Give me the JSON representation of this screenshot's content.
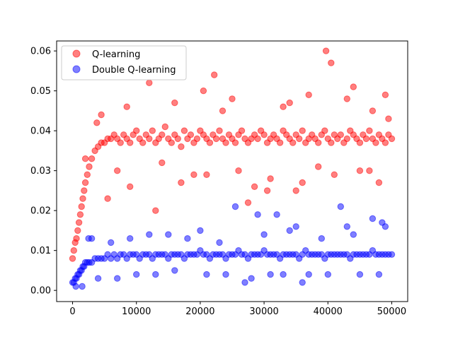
{
  "chart_data": {
    "type": "scatter",
    "title": "",
    "xlabel": "",
    "ylabel": "",
    "xlim": [
      -2500,
      52500
    ],
    "ylim": [
      -0.0028,
      0.0625
    ],
    "grid": false,
    "legend_position": "top-left",
    "x_ticks": [
      0,
      10000,
      20000,
      30000,
      40000,
      50000
    ],
    "x_tick_labels": [
      "0",
      "10000",
      "20000",
      "30000",
      "40000",
      "50000"
    ],
    "y_ticks": [
      0.0,
      0.01,
      0.02,
      0.03,
      0.04,
      0.05,
      0.06
    ],
    "y_tick_labels": [
      "0.00",
      "0.01",
      "0.02",
      "0.03",
      "0.04",
      "0.05",
      "0.06"
    ],
    "series": [
      {
        "name": "Q-learning",
        "color": "#ff0000",
        "marker": "circle",
        "alpha": 0.5,
        "x": [
          0,
          200,
          400,
          600,
          800,
          1000,
          1200,
          1400,
          1600,
          1800,
          2000,
          2300,
          2600,
          3000,
          3500,
          4000,
          4500,
          5000,
          5500,
          6000,
          6500,
          7000,
          7500,
          8000,
          8500,
          9000,
          9500,
          10000,
          10500,
          11000,
          11500,
          12000,
          12500,
          13000,
          13500,
          14000,
          14500,
          15000,
          15500,
          16000,
          16500,
          17000,
          17500,
          18000,
          18500,
          19000,
          19500,
          20000,
          20500,
          21000,
          21500,
          22000,
          22500,
          23000,
          23500,
          24000,
          24500,
          25000,
          25500,
          26000,
          26500,
          27000,
          27500,
          28000,
          28500,
          29000,
          29500,
          30000,
          30500,
          31000,
          31500,
          32000,
          32500,
          33000,
          33500,
          34000,
          34500,
          35000,
          35500,
          36000,
          36500,
          37000,
          37500,
          38000,
          38500,
          39000,
          39500,
          40000,
          40500,
          41000,
          41500,
          42000,
          42500,
          43000,
          43500,
          44000,
          44500,
          45000,
          45500,
          46000,
          46500,
          47000,
          47500,
          48000,
          48500,
          49000,
          49500,
          50000,
          12000,
          22200,
          39700,
          40500,
          13000,
          27500,
          30500,
          35000,
          3800,
          7000,
          16000,
          20500,
          25000,
          33000,
          37000,
          44000,
          47000,
          49000,
          5500,
          9000,
          17000,
          21000,
          26000,
          31000,
          36000,
          41000,
          45000,
          48000,
          2000,
          4500,
          8500,
          14000,
          19000,
          23500,
          28500,
          34000,
          38500,
          43000,
          46500,
          49500
        ],
        "y": [
          0.008,
          0.01,
          0.012,
          0.013,
          0.015,
          0.017,
          0.019,
          0.021,
          0.023,
          0.025,
          0.027,
          0.029,
          0.031,
          0.033,
          0.035,
          0.036,
          0.037,
          0.037,
          0.038,
          0.038,
          0.039,
          0.038,
          0.037,
          0.039,
          0.038,
          0.037,
          0.039,
          0.04,
          0.038,
          0.037,
          0.039,
          0.038,
          0.04,
          0.037,
          0.038,
          0.039,
          0.041,
          0.038,
          0.037,
          0.039,
          0.038,
          0.036,
          0.04,
          0.038,
          0.039,
          0.037,
          0.038,
          0.04,
          0.039,
          0.038,
          0.037,
          0.039,
          0.038,
          0.04,
          0.038,
          0.037,
          0.039,
          0.038,
          0.037,
          0.039,
          0.04,
          0.038,
          0.037,
          0.038,
          0.039,
          0.038,
          0.04,
          0.039,
          0.037,
          0.038,
          0.039,
          0.038,
          0.037,
          0.04,
          0.039,
          0.038,
          0.037,
          0.039,
          0.038,
          0.04,
          0.037,
          0.038,
          0.039,
          0.038,
          0.037,
          0.039,
          0.04,
          0.038,
          0.037,
          0.039,
          0.038,
          0.039,
          0.037,
          0.038,
          0.04,
          0.039,
          0.038,
          0.037,
          0.039,
          0.038,
          0.04,
          0.038,
          0.037,
          0.039,
          0.038,
          0.037,
          0.039,
          0.038,
          0.052,
          0.054,
          0.06,
          0.057,
          0.02,
          0.022,
          0.025,
          0.025,
          0.042,
          0.03,
          0.047,
          0.05,
          0.048,
          0.046,
          0.049,
          0.051,
          0.045,
          0.049,
          0.023,
          0.026,
          0.027,
          0.029,
          0.03,
          0.028,
          0.027,
          0.029,
          0.03,
          0.027,
          0.033,
          0.044,
          0.046,
          0.032,
          0.029,
          0.045,
          0.026,
          0.047,
          0.031,
          0.048,
          0.03,
          0.043
        ]
      },
      {
        "name": "Double Q-learning",
        "color": "#0000ff",
        "marker": "circle",
        "alpha": 0.5,
        "x": [
          0,
          200,
          400,
          600,
          800,
          1000,
          1200,
          1400,
          1600,
          1800,
          2000,
          2300,
          2600,
          3000,
          3500,
          4000,
          4500,
          5000,
          5500,
          6000,
          6500,
          7000,
          7500,
          8000,
          8500,
          9000,
          9500,
          10000,
          10500,
          11000,
          11500,
          12000,
          12500,
          13000,
          13500,
          14000,
          14500,
          15000,
          15500,
          16000,
          16500,
          17000,
          17500,
          18000,
          18500,
          19000,
          19500,
          20000,
          20500,
          21000,
          21500,
          22000,
          22500,
          23000,
          23500,
          24000,
          24500,
          25000,
          25500,
          26000,
          26500,
          27000,
          27500,
          28000,
          28500,
          29000,
          29500,
          30000,
          30500,
          31000,
          31500,
          32000,
          32500,
          33000,
          33500,
          34000,
          34500,
          35000,
          35500,
          36000,
          36500,
          37000,
          37500,
          38000,
          38500,
          39000,
          39500,
          40000,
          40500,
          41000,
          41500,
          42000,
          42500,
          43000,
          43500,
          44000,
          44500,
          45000,
          45500,
          46000,
          46500,
          47000,
          47500,
          48000,
          48500,
          49000,
          49500,
          50000,
          25500,
          29000,
          32000,
          42000,
          35000,
          43000,
          47000,
          48500,
          27000,
          36000,
          15000,
          20000,
          3000,
          6000,
          9000,
          12000,
          18000,
          23000,
          30000,
          34000,
          39000,
          44000,
          49000,
          500,
          1500,
          2500,
          4000,
          7000,
          10000,
          13000,
          16000,
          21000,
          24000,
          28000,
          31000,
          33000,
          37000,
          40000,
          45000,
          48000
        ],
        "y": [
          0.002,
          0.002,
          0.003,
          0.003,
          0.004,
          0.004,
          0.005,
          0.005,
          0.006,
          0.006,
          0.007,
          0.007,
          0.007,
          0.007,
          0.008,
          0.008,
          0.008,
          0.008,
          0.009,
          0.008,
          0.009,
          0.008,
          0.009,
          0.009,
          0.008,
          0.009,
          0.009,
          0.009,
          0.008,
          0.009,
          0.009,
          0.009,
          0.008,
          0.009,
          0.009,
          0.009,
          0.009,
          0.008,
          0.009,
          0.009,
          0.009,
          0.009,
          0.008,
          0.009,
          0.009,
          0.009,
          0.009,
          0.01,
          0.009,
          0.009,
          0.008,
          0.009,
          0.009,
          0.009,
          0.009,
          0.008,
          0.009,
          0.009,
          0.009,
          0.01,
          0.009,
          0.009,
          0.008,
          0.009,
          0.009,
          0.009,
          0.009,
          0.01,
          0.009,
          0.009,
          0.009,
          0.009,
          0.008,
          0.009,
          0.009,
          0.009,
          0.009,
          0.009,
          0.008,
          0.009,
          0.01,
          0.009,
          0.009,
          0.009,
          0.009,
          0.009,
          0.008,
          0.009,
          0.009,
          0.009,
          0.009,
          0.009,
          0.009,
          0.009,
          0.008,
          0.009,
          0.009,
          0.009,
          0.009,
          0.009,
          0.009,
          0.01,
          0.009,
          0.009,
          0.009,
          0.009,
          0.009,
          0.009,
          0.021,
          0.019,
          0.019,
          0.021,
          0.016,
          0.016,
          0.018,
          0.017,
          0.002,
          0.002,
          0.014,
          0.015,
          0.013,
          0.012,
          0.013,
          0.014,
          0.013,
          0.012,
          0.014,
          0.015,
          0.013,
          0.014,
          0.016,
          0.001,
          0.001,
          0.013,
          0.003,
          0.003,
          0.004,
          0.004,
          0.005,
          0.004,
          0.004,
          0.003,
          0.004,
          0.004,
          0.004,
          0.004,
          0.004,
          0.004
        ]
      }
    ]
  }
}
